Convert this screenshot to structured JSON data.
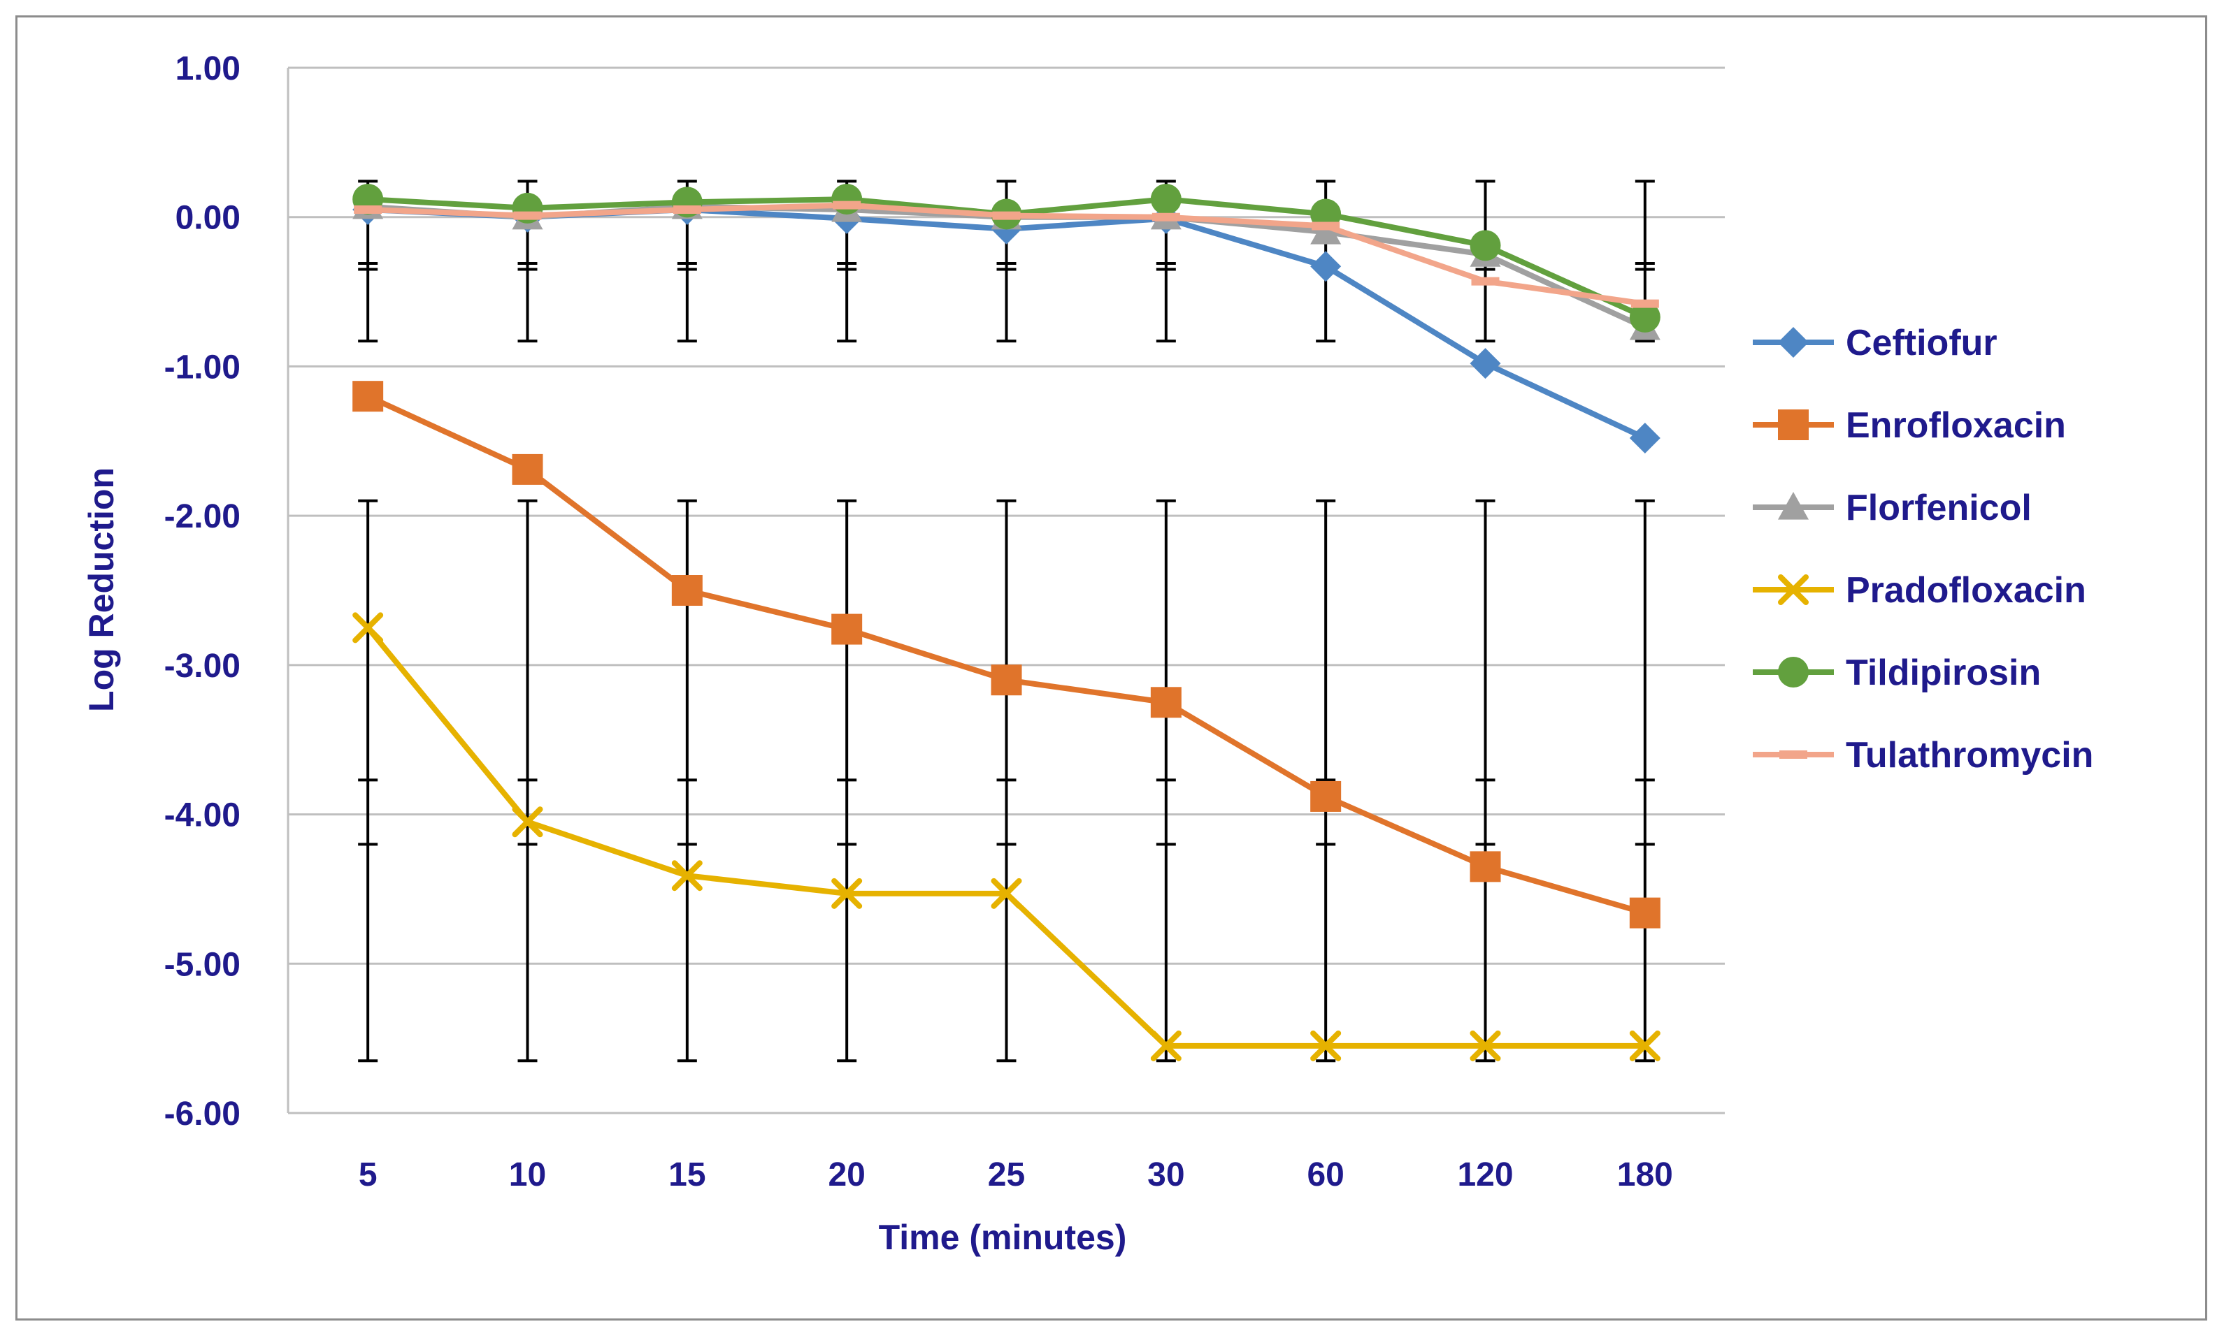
{
  "chart_data": {
    "type": "line",
    "title": "",
    "xlabel": "Time (minutes)",
    "ylabel": "Log Reduction",
    "categories": [
      "5",
      "10",
      "15",
      "20",
      "25",
      "30",
      "60",
      "120",
      "180"
    ],
    "ylim": [
      -6,
      1
    ],
    "yticks": [
      1,
      0,
      -1,
      -2,
      -3,
      -4,
      -5,
      -6
    ],
    "ytick_labels": [
      "1.00",
      "0.00",
      "-1.00",
      "-2.00",
      "-3.00",
      "-4.00",
      "-5.00",
      "-6.00"
    ],
    "grid": true,
    "legend_position": "right",
    "series": [
      {
        "name": "Ceftiofur",
        "color": "#4e86c4",
        "marker": "diamond",
        "values": [
          0.05,
          0.0,
          0.05,
          -0.01,
          -0.08,
          -0.01,
          -0.33,
          -0.98,
          -1.48
        ]
      },
      {
        "name": "Enrofloxacin",
        "color": "#e0742b",
        "marker": "square",
        "values": [
          -1.2,
          -1.69,
          -2.5,
          -2.76,
          -3.1,
          -3.25,
          -3.88,
          -4.35,
          -4.66
        ]
      },
      {
        "name": "Florfenicol",
        "color": "#a0a0a0",
        "marker": "triangle",
        "values": [
          0.07,
          0.0,
          0.07,
          0.05,
          0.0,
          0.0,
          -0.1,
          -0.25,
          -0.74
        ]
      },
      {
        "name": "Pradofloxacin",
        "color": "#e6b200",
        "marker": "x",
        "values": [
          -2.75,
          -4.05,
          -4.41,
          -4.53,
          -4.53,
          -5.55,
          -5.55,
          -5.55,
          -5.55
        ]
      },
      {
        "name": "Tildipirosin",
        "color": "#62a03e",
        "marker": "circle",
        "values": [
          0.12,
          0.06,
          0.1,
          0.12,
          0.02,
          0.12,
          0.02,
          -0.19,
          -0.67
        ]
      },
      {
        "name": "Tulathromycin",
        "color": "#f2a58a",
        "marker": "dash",
        "values": [
          0.05,
          0.01,
          0.05,
          0.08,
          0.01,
          0.0,
          -0.06,
          -0.43,
          -0.58
        ]
      }
    ],
    "error_bars": {
      "color": "#000000",
      "group_upper": {
        "lower": -0.83,
        "upper": 0.24,
        "inner_ticks": [
          -0.31,
          -0.35
        ]
      },
      "group_lower": {
        "lower": -5.65,
        "upper": -1.9,
        "inner_ticks": [
          -3.77,
          -4.2
        ]
      }
    }
  }
}
